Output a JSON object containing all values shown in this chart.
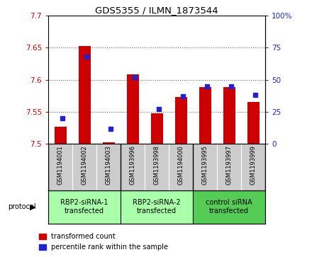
{
  "title": "GDS5355 / ILMN_1873544",
  "samples": [
    "GSM1194001",
    "GSM1194002",
    "GSM1194003",
    "GSM1193996",
    "GSM1193998",
    "GSM1194000",
    "GSM1193995",
    "GSM1193997",
    "GSM1193999"
  ],
  "red_values": [
    7.527,
    7.652,
    7.503,
    7.608,
    7.548,
    7.573,
    7.588,
    7.588,
    7.565
  ],
  "blue_values": [
    20,
    68,
    12,
    52,
    27,
    37,
    45,
    45,
    38
  ],
  "ylim_left": [
    7.5,
    7.7
  ],
  "ylim_right": [
    0,
    100
  ],
  "yticks_left": [
    7.5,
    7.55,
    7.6,
    7.65,
    7.7
  ],
  "yticks_right": [
    0,
    25,
    50,
    75,
    100
  ],
  "ytick_labels_left": [
    "7.5",
    "7.55",
    "7.6",
    "7.65",
    "7.7"
  ],
  "ytick_labels_right": [
    "0",
    "25",
    "50",
    "75",
    "100%"
  ],
  "red_color": "#cc0000",
  "blue_color": "#2222cc",
  "bar_width": 0.5,
  "groups": [
    {
      "label": "RBP2-siRNA-1\ntransfected",
      "indices": [
        0,
        1,
        2
      ],
      "color": "#aaffaa"
    },
    {
      "label": "RBP2-siRNA-2\ntransfected",
      "indices": [
        3,
        4,
        5
      ],
      "color": "#aaffaa"
    },
    {
      "label": "control siRNA\ntransfected",
      "indices": [
        6,
        7,
        8
      ],
      "color": "#55cc55"
    }
  ],
  "protocol_label": "protocol",
  "legend_red": "transformed count",
  "legend_blue": "percentile rank within the sample",
  "grid_color": "#888888",
  "plot_bg": "#ffffff",
  "sample_box_bg": "#cccccc"
}
